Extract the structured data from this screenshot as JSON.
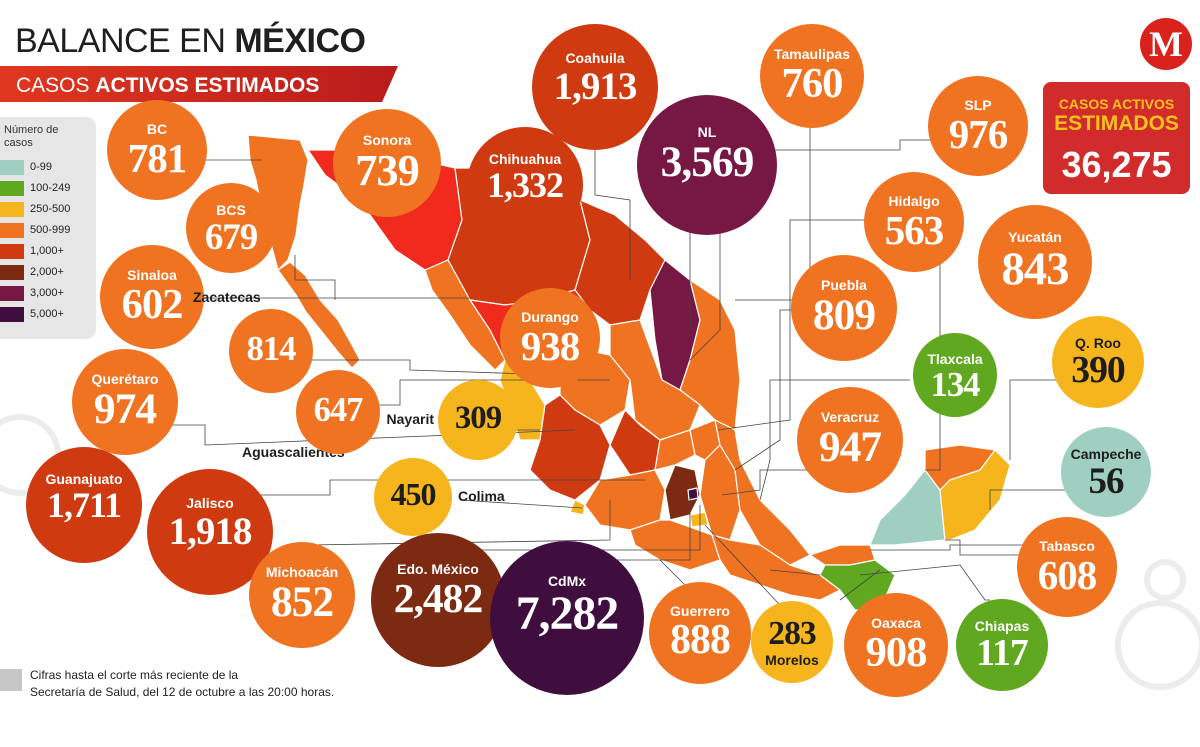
{
  "header": {
    "title_light": "BALANCE EN ",
    "title_bold": "MÉXICO",
    "subtitle_light": "CASOS ",
    "subtitle_bold": "ACTIVOS ESTIMADOS"
  },
  "legend": {
    "title": "Número de casos",
    "items": [
      {
        "label": "0-99",
        "color": "#9fcfc0"
      },
      {
        "label": "100-249",
        "color": "#5fa81f"
      },
      {
        "label": "250-500",
        "color": "#f7b51d"
      },
      {
        "label": "500-999",
        "color": "#f07322"
      },
      {
        "label": "1,000+",
        "color": "#cf3a10"
      },
      {
        "label": "2,000+",
        "color": "#7d2a12"
      },
      {
        "label": "3,000+",
        "color": "#761744"
      },
      {
        "label": "5,000+",
        "color": "#3f0e3f"
      }
    ]
  },
  "logo": {
    "letter": "M",
    "color": "#d9221c"
  },
  "total": {
    "line1": "CASOS ACTIVOS",
    "line2": "ESTIMADOS",
    "value": "36,275"
  },
  "states": [
    {
      "name": "BC",
      "value": "781",
      "color": "#f07322"
    },
    {
      "name": "Sonora",
      "value": "739",
      "color": "#f07322"
    },
    {
      "name": "Coahuila",
      "value": "1,913",
      "color": "#cf3a10"
    },
    {
      "name": "Tamaulipas",
      "value": "760",
      "color": "#f07322"
    },
    {
      "name": "NL",
      "value": "3,569",
      "color": "#761744"
    },
    {
      "name": "Chihuahua",
      "value": "1,332",
      "color": "#cf3a10"
    },
    {
      "name": "SLP",
      "value": "976",
      "color": "#f07322"
    },
    {
      "name": "BCS",
      "value": "679",
      "color": "#f07322"
    },
    {
      "name": "Hidalgo",
      "value": "563",
      "color": "#f07322"
    },
    {
      "name": "Yucatán",
      "value": "843",
      "color": "#f07322"
    },
    {
      "name": "Sinaloa",
      "value": "602",
      "color": "#f07322"
    },
    {
      "name": "Puebla",
      "value": "809",
      "color": "#f07322"
    },
    {
      "name": "Durango",
      "value": "938",
      "color": "#f07322"
    },
    {
      "name": "Zacatecas",
      "value": "814",
      "color": "#f07322"
    },
    {
      "name": "Tlaxcala",
      "value": "134",
      "color": "#5fa81f"
    },
    {
      "name": "Q. Roo",
      "value": "390",
      "color": "#f7b51d"
    },
    {
      "name": "Querétaro",
      "value": "974",
      "color": "#f07322"
    },
    {
      "name": "Aguascalientes",
      "value": "647",
      "color": "#f07322"
    },
    {
      "name": "Nayarit",
      "value": "309",
      "color": "#f7b51d"
    },
    {
      "name": "Veracruz",
      "value": "947",
      "color": "#f07322"
    },
    {
      "name": "Campeche",
      "value": "56",
      "color": "#9fcfc0"
    },
    {
      "name": "Guanajuato",
      "value": "1,711",
      "color": "#cf3a10"
    },
    {
      "name": "Jalisco",
      "value": "1,918",
      "color": "#cf3a10"
    },
    {
      "name": "Colima",
      "value": "450",
      "color": "#f7b51d"
    },
    {
      "name": "Tabasco",
      "value": "608",
      "color": "#f07322"
    },
    {
      "name": "Michoacán",
      "value": "852",
      "color": "#f07322"
    },
    {
      "name": "Edo. México",
      "value": "2,482",
      "color": "#7d2a12"
    },
    {
      "name": "CdMx",
      "value": "7,282",
      "color": "#3f0e3f"
    },
    {
      "name": "Guerrero",
      "value": "888",
      "color": "#f07322"
    },
    {
      "name": "Morelos",
      "value": "283",
      "color": "#f7b51d"
    },
    {
      "name": "Oaxaca",
      "value": "908",
      "color": "#f07322"
    },
    {
      "name": "Chiapas",
      "value": "117",
      "color": "#5fa81f"
    }
  ],
  "footnote": {
    "line1": "Cifras hasta el corte más reciente de la",
    "line2": "Secretaría de Salud, del 12 de octubre a las 20:00 horas."
  }
}
